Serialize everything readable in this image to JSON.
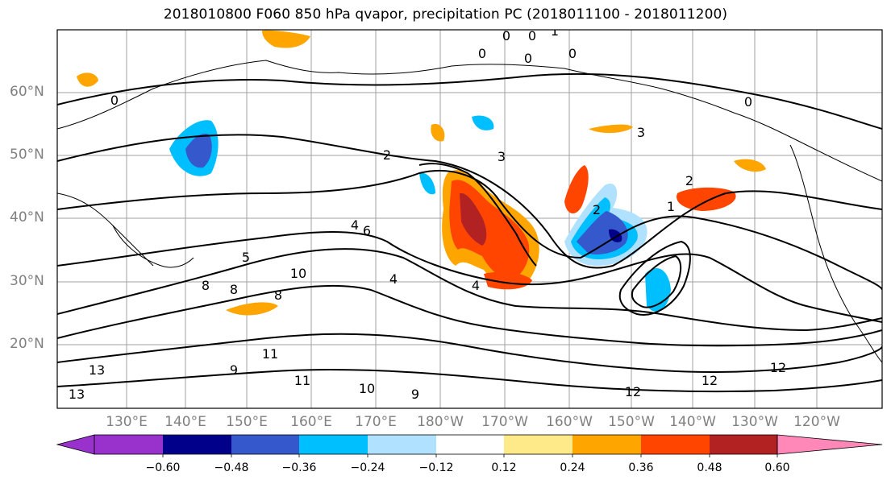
{
  "title": "2018010800 F060 850 hPa qvapor, precipitation PC (2018011100 - 2018011200)",
  "lat_labels": [
    "60°N",
    "50°N",
    "40°N",
    "30°N",
    "20°N"
  ],
  "lon_labels": [
    "130°E",
    "140°E",
    "150°E",
    "160°E",
    "170°E",
    "180°W",
    "170°W",
    "160°W",
    "150°W",
    "140°W",
    "130°W",
    "120°W"
  ],
  "colorbar": {
    "labels": [
      "−0.60",
      "−0.48",
      "−0.36",
      "−0.24",
      "−0.12",
      "0.12",
      "0.24",
      "0.36",
      "0.48",
      "0.60"
    ],
    "colors": [
      "#9932cc",
      "#00008b",
      "#3558cc",
      "#00bfff",
      "#b0e2ff",
      "#ffffff",
      "#ffea8a",
      "#ffa500",
      "#ff4500",
      "#b22222",
      "#ff88b8"
    ]
  },
  "contour_labels": [
    "0",
    "0",
    "1",
    "0",
    "0",
    "0",
    "0",
    "0",
    "2",
    "3",
    "2",
    "1",
    "2",
    "4",
    "5",
    "6",
    "4",
    "4",
    "10",
    "8",
    "8",
    "8",
    "9",
    "10",
    "11",
    "11",
    "12",
    "12",
    "12",
    "13",
    "13",
    "9",
    "3"
  ],
  "colors": {
    "contour": "#000000",
    "grid": "#a0a0a0",
    "coast": "#000000"
  }
}
